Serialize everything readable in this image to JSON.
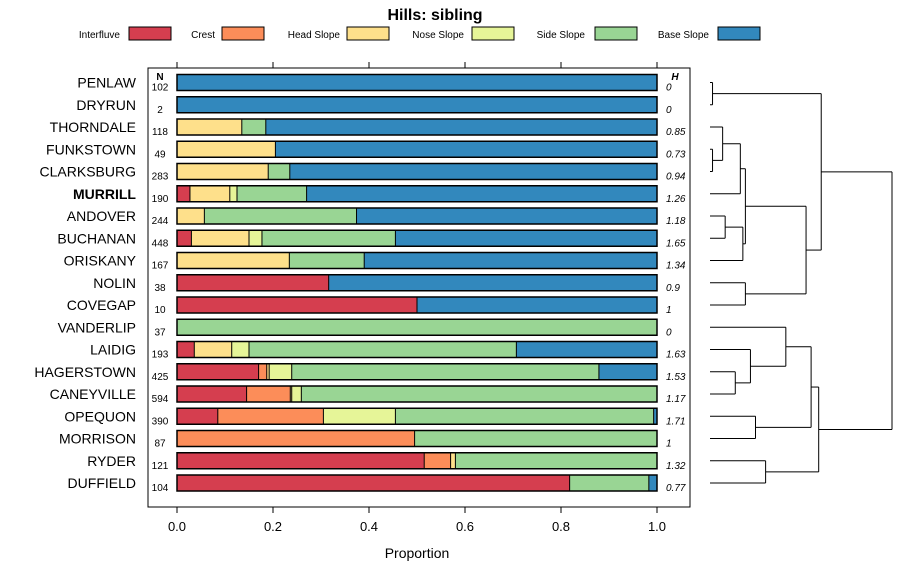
{
  "chart_data": {
    "type": "bar",
    "stacked": true,
    "orientation": "horizontal",
    "title": "Hills: sibling",
    "xlabel": "Proportion",
    "xlim": [
      0,
      1
    ],
    "xticks": [
      "0.0",
      "0.2",
      "0.4",
      "0.6",
      "0.8",
      "1.0"
    ],
    "n_header": "N",
    "h_header": "H",
    "legend": [
      {
        "name": "Interfluve",
        "color": "#d53e4f"
      },
      {
        "name": "Crest",
        "color": "#fc8d59"
      },
      {
        "name": "Head Slope",
        "color": "#fee08b"
      },
      {
        "name": "Nose Slope",
        "color": "#e6f598"
      },
      {
        "name": "Side Slope",
        "color": "#99d594"
      },
      {
        "name": "Base Slope",
        "color": "#3288bd"
      }
    ],
    "rows": [
      {
        "name": "PENLAW",
        "n": "102",
        "h": "0",
        "bold": false,
        "values": [
          0,
          0,
          0,
          0,
          0,
          1.0
        ]
      },
      {
        "name": "DRYRUN",
        "n": "2",
        "h": "0",
        "bold": false,
        "values": [
          0,
          0,
          0,
          0,
          0,
          1.0
        ]
      },
      {
        "name": "THORNDALE",
        "n": "118",
        "h": "0.85",
        "bold": false,
        "values": [
          0,
          0,
          0.135,
          0,
          0.05,
          0.815
        ]
      },
      {
        "name": "FUNKSTOWN",
        "n": "49",
        "h": "0.73",
        "bold": false,
        "values": [
          0,
          0,
          0.205,
          0,
          0,
          0.795
        ]
      },
      {
        "name": "CLARKSBURG",
        "n": "283",
        "h": "0.94",
        "bold": false,
        "values": [
          0,
          0,
          0.19,
          0,
          0.045,
          0.765
        ]
      },
      {
        "name": "MURRILL",
        "n": "190",
        "h": "1.26",
        "bold": true,
        "values": [
          0.027,
          0,
          0.083,
          0.015,
          0.145,
          0.73
        ]
      },
      {
        "name": "ANDOVER",
        "n": "244",
        "h": "1.18",
        "bold": false,
        "values": [
          0,
          0,
          0.057,
          0,
          0.317,
          0.626
        ]
      },
      {
        "name": "BUCHANAN",
        "n": "448",
        "h": "1.65",
        "bold": false,
        "values": [
          0.03,
          0,
          0.12,
          0.027,
          0.278,
          0.545
        ]
      },
      {
        "name": "ORISKANY",
        "n": "167",
        "h": "1.34",
        "bold": false,
        "values": [
          0,
          0,
          0.234,
          0,
          0.156,
          0.61
        ]
      },
      {
        "name": "NOLIN",
        "n": "38",
        "h": "0.9",
        "bold": false,
        "values": [
          0.316,
          0,
          0,
          0,
          0,
          0.684
        ]
      },
      {
        "name": "COVEGAP",
        "n": "10",
        "h": "1",
        "bold": false,
        "values": [
          0.5,
          0,
          0,
          0,
          0,
          0.5
        ]
      },
      {
        "name": "VANDERLIP",
        "n": "37",
        "h": "0",
        "bold": false,
        "values": [
          0,
          0,
          0,
          0,
          1.0,
          0
        ]
      },
      {
        "name": "LAIDIG",
        "n": "193",
        "h": "1.63",
        "bold": false,
        "values": [
          0.036,
          0,
          0.078,
          0.036,
          0.557,
          0.293
        ]
      },
      {
        "name": "HAGERSTOWN",
        "n": "425",
        "h": "1.53",
        "bold": false,
        "values": [
          0.17,
          0.017,
          0.005,
          0.047,
          0.64,
          0.121
        ]
      },
      {
        "name": "CANEYVILLE",
        "n": "594",
        "h": "1.17",
        "bold": false,
        "values": [
          0.145,
          0.091,
          0.003,
          0.02,
          0.741,
          0
        ]
      },
      {
        "name": "OPEQUON",
        "n": "390",
        "h": "1.71",
        "bold": false,
        "values": [
          0.085,
          0.22,
          0,
          0.15,
          0.538,
          0.007
        ]
      },
      {
        "name": "MORRISON",
        "n": "87",
        "h": "1",
        "bold": false,
        "values": [
          0,
          0.495,
          0,
          0,
          0.505,
          0
        ]
      },
      {
        "name": "RYDER",
        "n": "121",
        "h": "1.32",
        "bold": false,
        "values": [
          0.515,
          0.055,
          0.01,
          0,
          0.42,
          0
        ]
      },
      {
        "name": "DUFFIELD",
        "n": "104",
        "h": "0.77",
        "bold": false,
        "values": [
          0.818,
          0,
          0,
          0,
          0.165,
          0.017
        ]
      }
    ],
    "dendrogram": {
      "leaf_order": [
        "PENLAW",
        "DRYRUN",
        "THORNDALE",
        "FUNKSTOWN",
        "CLARKSBURG",
        "MURRILL",
        "ANDOVER",
        "BUCHANAN",
        "ORISKANY",
        "NOLIN",
        "COVEGAP",
        "VANDERLIP",
        "LAIDIG",
        "HAGERSTOWN",
        "CANEYVILLE",
        "OPEQUON",
        "MORRISON",
        "RYDER",
        "DUFFIELD"
      ],
      "merges": [
        [
          -1,
          -2,
          0.01
        ],
        [
          -4,
          -5,
          0.01
        ],
        [
          -3,
          2,
          0.05
        ],
        [
          -6,
          3,
          0.12
        ],
        [
          -7,
          -8,
          0.06
        ],
        [
          5,
          -9,
          0.13
        ],
        [
          4,
          6,
          0.14
        ],
        [
          -10,
          -11,
          0.14
        ],
        [
          7,
          8,
          0.38
        ],
        [
          1,
          9,
          0.44
        ],
        [
          -14,
          -15,
          0.1
        ],
        [
          -13,
          11,
          0.16
        ],
        [
          -12,
          12,
          0.3
        ],
        [
          -16,
          -17,
          0.18
        ],
        [
          13,
          14,
          0.4
        ],
        [
          -18,
          -19,
          0.22
        ],
        [
          15,
          16,
          0.43
        ],
        [
          10,
          17,
          0.72
        ]
      ],
      "max_height": 0.72
    }
  }
}
